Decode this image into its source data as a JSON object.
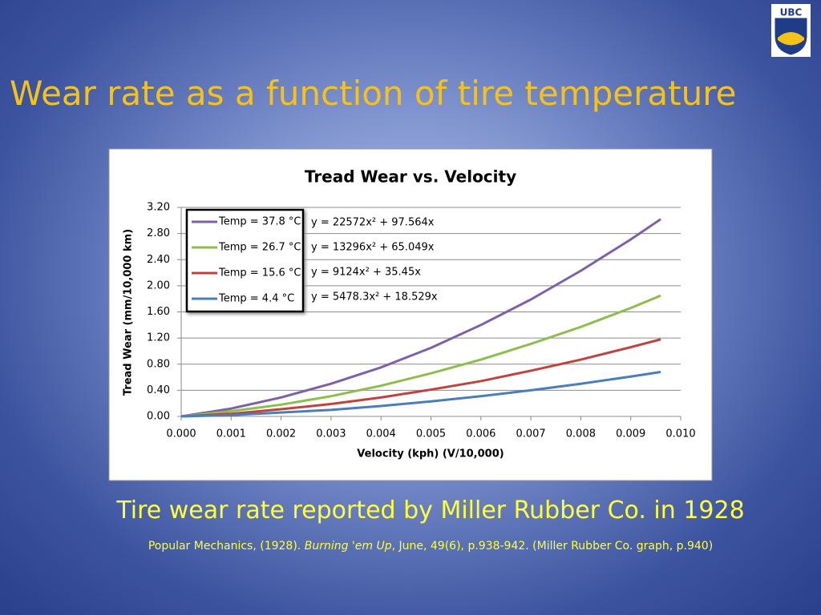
{
  "slide": {
    "title": "Wear rate as a function of tire temperature",
    "logo": "UBC",
    "subtitle": "Tire wear rate reported by Miller Rubber Co.  in 1928",
    "citation": {
      "before": "Popular Mechanics, (1928). ",
      "italic": "Burning 'em Up",
      "after": ", June, 49(6), p.938-942. (Miller Rubber Co. graph, p.940)"
    }
  },
  "chart_data": {
    "type": "line",
    "title": "Tread Wear vs. Velocity",
    "x_label": "Velocity (kph) (V/10,000)",
    "y_label": "Tread Wear (mm/10,000 km)",
    "x": [
      0,
      0.001,
      0.002,
      0.003,
      0.004,
      0.005,
      0.006,
      0.007,
      0.008,
      0.009,
      0.0096
    ],
    "series": [
      {
        "name": "Temp = 37.8 °C",
        "color": "#7f5fa8",
        "values": [
          0,
          0.12,
          0.29,
          0.5,
          0.75,
          1.05,
          1.4,
          1.79,
          2.23,
          2.71,
          3.02
        ]
      },
      {
        "name": "Temp = 26.7 °C",
        "color": "#8cbf4a",
        "values": [
          0,
          0.08,
          0.18,
          0.31,
          0.47,
          0.66,
          0.87,
          1.11,
          1.37,
          1.66,
          1.85
        ]
      },
      {
        "name": "Temp = 15.6 °C",
        "color": "#c0413e",
        "values": [
          0,
          0.04,
          0.11,
          0.19,
          0.29,
          0.41,
          0.54,
          0.7,
          0.87,
          1.06,
          1.18
        ]
      },
      {
        "name": "Temp = 4.4 °C",
        "color": "#4a7ebb",
        "values": [
          0,
          0.02,
          0.06,
          0.1,
          0.16,
          0.23,
          0.31,
          0.4,
          0.5,
          0.61,
          0.68
        ]
      }
    ],
    "annotations": [
      "y = 22572x² + 97.564x",
      "y = 13296x² + 65.049x",
      "y = 9124x² + 35.45x",
      "y = 5478.3x² + 18.529x"
    ],
    "xlim": [
      0,
      0.01
    ],
    "ylim": [
      0,
      3.2
    ],
    "xticks": [
      {
        "value": 0,
        "label": "0.000"
      },
      {
        "value": 0.001,
        "label": "0.001"
      },
      {
        "value": 0.002,
        "label": "0.002"
      },
      {
        "value": 0.003,
        "label": "0.003"
      },
      {
        "value": 0.004,
        "label": "0.004"
      },
      {
        "value": 0.005,
        "label": "0.005"
      },
      {
        "value": 0.006,
        "label": "0.006"
      },
      {
        "value": 0.007,
        "label": "0.007"
      },
      {
        "value": 0.008,
        "label": "0.008"
      },
      {
        "value": 0.009,
        "label": "0.009"
      },
      {
        "value": 0.01,
        "label": "0.010"
      }
    ],
    "yticks": [
      {
        "value": 0,
        "label": "0.00"
      },
      {
        "value": 0.4,
        "label": "0.40"
      },
      {
        "value": 0.8,
        "label": "0.80"
      },
      {
        "value": 1.2,
        "label": "1.20"
      },
      {
        "value": 1.6,
        "label": "1.60"
      },
      {
        "value": 2,
        "label": "2.00"
      },
      {
        "value": 2.4,
        "label": "2.40"
      },
      {
        "value": 2.8,
        "label": "2.80"
      },
      {
        "value": 3.2,
        "label": "3.20"
      }
    ],
    "grid": true,
    "legend": "upper left"
  }
}
